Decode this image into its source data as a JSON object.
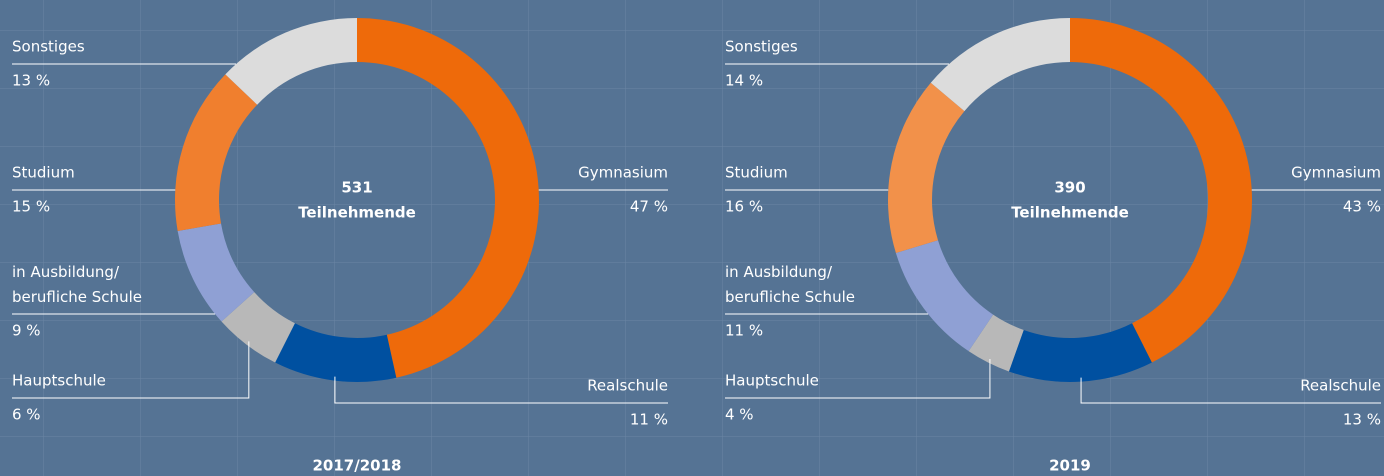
{
  "chart_data": [
    {
      "type": "pie",
      "title": "2017/2018",
      "center_value": "531",
      "center_label": "Teilnehmende",
      "categories": [
        "Gymnasium",
        "Realschule",
        "Hauptschule",
        "in Ausbildung/\nberufliche Schule",
        "Studium",
        "Sonstiges"
      ],
      "values": [
        47,
        11,
        6,
        9,
        15,
        13
      ],
      "value_labels": [
        "47 %",
        "11 %",
        "6 %",
        "9 %",
        "15 %",
        "13 %"
      ],
      "colors": [
        "#ee6a0a",
        "#0050a0",
        "#b8b8b8",
        "#8fa0d4",
        "#f07f2e",
        "#dcdcdc"
      ]
    },
    {
      "type": "pie",
      "title": "2019",
      "center_value": "390",
      "center_label": "Teilnehmende",
      "categories": [
        "Gymnasium",
        "Realschule",
        "Hauptschule",
        "in Ausbildung/\nberufliche Schule",
        "Studium",
        "Sonstiges"
      ],
      "values": [
        43,
        13,
        4,
        11,
        16,
        14
      ],
      "value_labels": [
        "43 %",
        "13 %",
        "4 %",
        "11 %",
        "16 %",
        "14 %"
      ],
      "colors": [
        "#ee6a0a",
        "#0050a0",
        "#b8b8b8",
        "#8fa0d4",
        "#f2914a",
        "#dcdcdc"
      ]
    }
  ]
}
